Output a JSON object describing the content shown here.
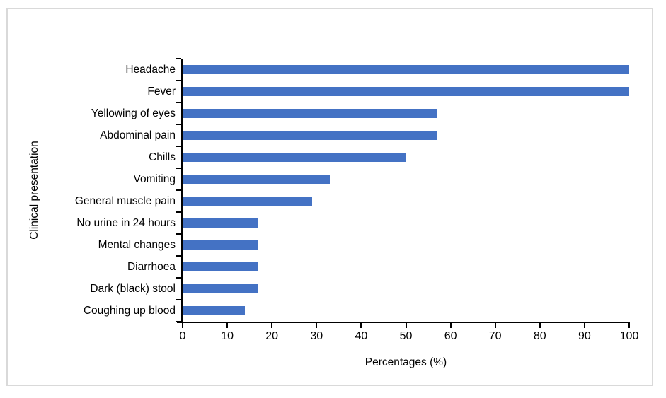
{
  "chart_data": {
    "type": "bar",
    "orientation": "horizontal",
    "title": "",
    "xlabel": "Percentages (%)",
    "ylabel": "Clinical presentation",
    "categories": [
      "Headache",
      "Fever",
      "Yellowing of eyes",
      "Abdominal pain",
      "Chills",
      "Vomiting",
      "General muscle pain",
      "No urine in 24 hours",
      "Mental changes",
      "Diarrhoea",
      "Dark (black) stool",
      "Coughing up blood"
    ],
    "values": [
      100,
      100,
      57,
      57,
      50,
      33,
      29,
      17,
      17,
      17,
      17,
      14
    ],
    "xlim": [
      0,
      100
    ],
    "x_ticks": [
      0,
      10,
      20,
      30,
      40,
      50,
      60,
      70,
      80,
      90,
      100
    ],
    "grid": false,
    "legend": false,
    "colors": {
      "bar": "#4472c4",
      "axis": "#000000",
      "frame_border": "#d9d9d9",
      "background": "#ffffff"
    }
  }
}
